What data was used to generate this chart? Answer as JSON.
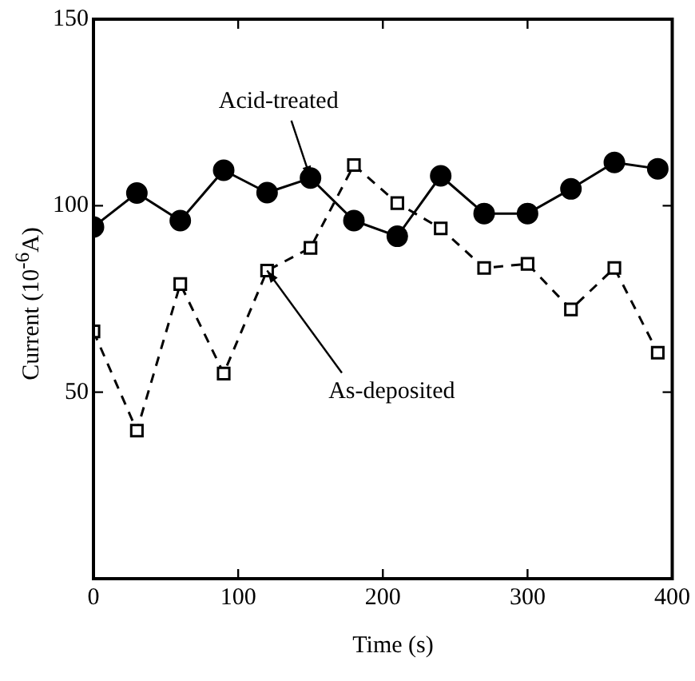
{
  "chart_data": {
    "type": "line",
    "xlabel": "Time (s)",
    "ylabel": "Current (10$^{-6}$A)",
    "x": [
      0,
      30,
      60,
      90,
      120,
      150,
      180,
      210,
      240,
      270,
      300,
      330,
      360,
      390
    ],
    "series": [
      {
        "color": "#000000",
        "marker": "circle",
        "line_style": "solid",
        "values": [
          94.3,
          103.4,
          96,
          109.5,
          103.5,
          107.4,
          96,
          91.8,
          108,
          97.9,
          97.9,
          104.5,
          111.6,
          109.9
        ]
      },
      {
        "color": "#000000",
        "marker": "square",
        "line_style": "dashed",
        "values": [
          66.3,
          39.7,
          79,
          55,
          82.6,
          88.7,
          110.9,
          100.7,
          93.9,
          83.3,
          84.4,
          72.2,
          83.3,
          60.6
        ]
      }
    ],
    "xlim": [
      0,
      400
    ],
    "xticks": [
      0,
      100,
      200,
      300,
      400
    ],
    "ylim": [
      0,
      150
    ],
    "yticks": [
      {
        "value": 0,
        "label": null
      },
      50,
      100,
      150
    ],
    "grid": false,
    "legend": false,
    "annotations": [
      {
        "text": "Acid-treated",
        "x": 150,
        "y": 107.4
      },
      {
        "text": "As-deposited",
        "x": 120,
        "y": 82.6
      }
    ]
  }
}
